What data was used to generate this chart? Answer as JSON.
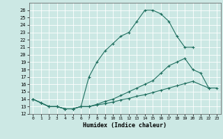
{
  "title": "",
  "xlabel": "Humidex (Indice chaleur)",
  "background_color": "#cce8e4",
  "grid_color": "#ffffff",
  "line_color": "#1e6e5e",
  "xlim": [
    -0.5,
    23.5
  ],
  "ylim": [
    12,
    27
  ],
  "xticks": [
    0,
    1,
    2,
    3,
    4,
    5,
    6,
    7,
    8,
    9,
    10,
    11,
    12,
    13,
    14,
    15,
    16,
    17,
    18,
    19,
    20,
    21,
    22,
    23
  ],
  "yticks": [
    12,
    13,
    14,
    15,
    16,
    17,
    18,
    19,
    20,
    21,
    22,
    23,
    24,
    25,
    26
  ],
  "line1_x": [
    0,
    1,
    2,
    3,
    4,
    5,
    6,
    7,
    8,
    9,
    10,
    11,
    12,
    13,
    14,
    15,
    16,
    17,
    18,
    19,
    20
  ],
  "line1_y": [
    14.0,
    13.5,
    13.0,
    13.0,
    12.7,
    12.7,
    13.0,
    17.0,
    19.0,
    20.5,
    21.5,
    22.5,
    23.0,
    24.5,
    26.0,
    26.0,
    25.5,
    24.5,
    22.5,
    21.0,
    21.0
  ],
  "line2_x": [
    0,
    1,
    2,
    3,
    4,
    5,
    6,
    7,
    8,
    9,
    10,
    11,
    12,
    13,
    14,
    15,
    16,
    17,
    18,
    19,
    20,
    21,
    22,
    23
  ],
  "line2_y": [
    14.0,
    13.5,
    13.0,
    13.0,
    12.7,
    12.7,
    13.0,
    13.0,
    13.3,
    13.7,
    14.0,
    14.5,
    15.0,
    15.5,
    16.0,
    16.5,
    17.5,
    18.5,
    19.0,
    19.5,
    18.0,
    17.5,
    15.5,
    15.5
  ],
  "line3_x": [
    0,
    1,
    2,
    3,
    4,
    5,
    6,
    7,
    8,
    9,
    10,
    11,
    12,
    13,
    14,
    15,
    16,
    17,
    18,
    19,
    20,
    22
  ],
  "line3_y": [
    14.0,
    13.5,
    13.0,
    13.0,
    12.7,
    12.7,
    13.0,
    13.0,
    13.2,
    13.4,
    13.6,
    13.9,
    14.1,
    14.4,
    14.6,
    14.9,
    15.2,
    15.5,
    15.8,
    16.1,
    16.4,
    15.5
  ]
}
